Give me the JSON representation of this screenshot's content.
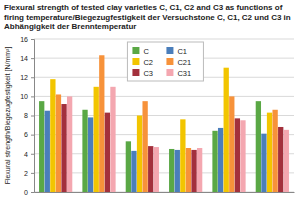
{
  "chart_data": {
    "type": "bar",
    "title": "Flexural strength of tested clay varieties C, C1, C2 and C3 as functions of firing temperature/Biegezugfestigkeit der Versuchstone C, C1, C2 und C3 in Abhängigkeit der Brenntemperatur",
    "y_label": "Flexural strength/Biegezugfestigkeit [N/mm²]",
    "categories": [
      null,
      null,
      null,
      null,
      null,
      null
    ],
    "series": [
      {
        "name": "C",
        "color": "#5aa845",
        "values": [
          9.5,
          8.6,
          5.3,
          4.5,
          6.4,
          9.5
        ]
      },
      {
        "name": "C1",
        "color": "#4a7ebb",
        "values": [
          8.5,
          7.8,
          4.3,
          4.4,
          6.7,
          6.1
        ]
      },
      {
        "name": "C2",
        "color": "#f2c500",
        "values": [
          11.8,
          11.0,
          8.0,
          7.6,
          13.0,
          8.3
        ]
      },
      {
        "name": "C21",
        "color": "#f7923a",
        "values": [
          10.2,
          14.3,
          9.5,
          4.6,
          10.0,
          8.6
        ]
      },
      {
        "name": "C3",
        "color": "#a3303c",
        "values": [
          9.2,
          8.3,
          4.8,
          4.4,
          7.7,
          6.8
        ]
      },
      {
        "name": "C31",
        "color": "#f4a7b0",
        "values": [
          10.0,
          11.0,
          4.7,
          4.6,
          7.5,
          6.5
        ]
      }
    ],
    "ylim": [
      0,
      16
    ],
    "yticks": [
      0,
      2,
      4,
      6,
      8,
      10,
      12,
      14,
      16
    ],
    "grid": true,
    "legend": "upper center",
    "tick_labels": "y"
  }
}
